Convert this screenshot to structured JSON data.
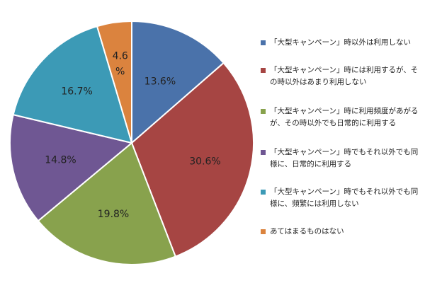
{
  "chart_data": {
    "type": "pie",
    "start_angle_deg": 0,
    "direction": "clockwise",
    "slices": [
      {
        "label": "「大型キャンペーン」時以外は利用しない",
        "value": 13.6,
        "display": "13.6%",
        "color": "#4a72aa"
      },
      {
        "label": "「大型キャンペーン」時には利用するが、その時以外はあまり利用しない",
        "value": 30.6,
        "display": "30.6%",
        "color": "#a64543"
      },
      {
        "label": "「大型キャンペーン」時に利用頻度があがるが、その時以外でも日常的に利用する",
        "value": 19.8,
        "display": "19.8%",
        "color": "#88a24d"
      },
      {
        "label": "「大型キャンペーン」時でもそれ以外でも同様に、日常的に利用する",
        "value": 14.8,
        "display": "14.8%",
        "color": "#6f5793"
      },
      {
        "label": "「大型キャンペーン」時でもそれ以外でも同様に、頻繁には利用しない",
        "value": 16.7,
        "display": "16.7%",
        "color": "#3c9ab6"
      },
      {
        "label": "あてはまるものはない",
        "value": 4.6,
        "display": "4.6%",
        "color": "#db833e"
      }
    ],
    "legend_position": "right"
  }
}
